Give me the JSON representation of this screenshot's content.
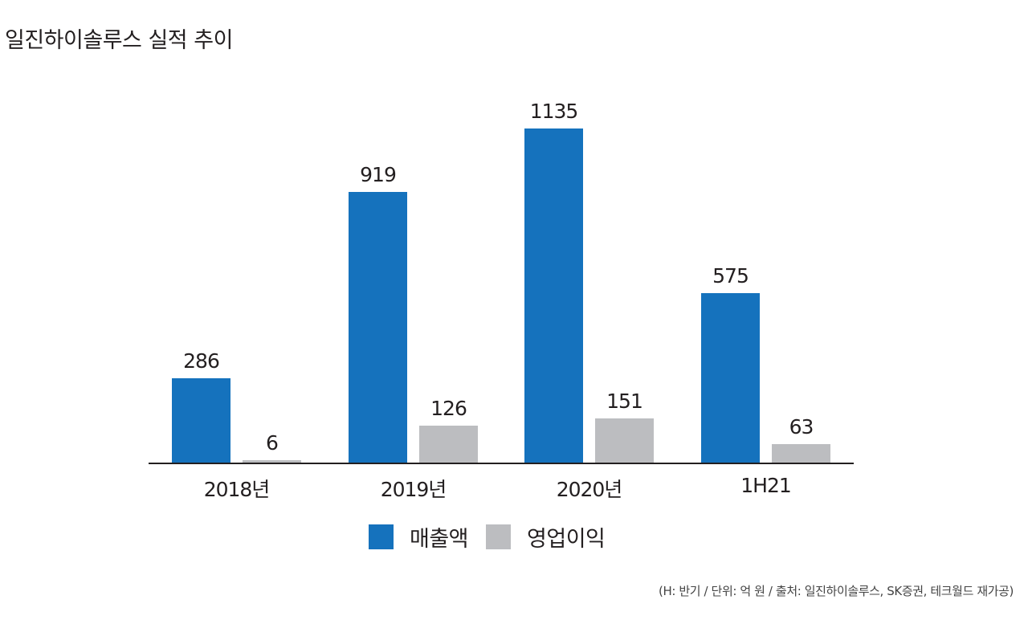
{
  "title": "일진하이솔루스 실적 추이",
  "source_note": "(H: 반기 / 단위: 억 원 / 출처: 일진하이솔루스, SK증권, 테크월드 재가공)",
  "legend": [
    {
      "label": "매출액",
      "color": "#1572bd"
    },
    {
      "label": "영업이익",
      "color": "#bcbdc0"
    }
  ],
  "chart_data": {
    "type": "bar",
    "title": "일진하이솔루스 실적 추이",
    "xlabel": "",
    "ylabel": "",
    "unit": "억 원",
    "categories": [
      "2018년",
      "2019년",
      "2020년",
      "1H21"
    ],
    "series": [
      {
        "name": "매출액",
        "color": "#1572bd",
        "values": [
          286,
          919,
          1135,
          575
        ]
      },
      {
        "name": "영업이익",
        "color": "#bcbdc0",
        "values": [
          6,
          126,
          151,
          63
        ]
      }
    ],
    "ylim": [
      0,
      1135
    ],
    "grid": false,
    "legend_position": "bottom",
    "data_labels": true,
    "annotations": [
      "(H: 반기 / 단위: 억 원 / 출처: 일진하이솔루스, SK증권, 테크월드 재가공)"
    ]
  }
}
